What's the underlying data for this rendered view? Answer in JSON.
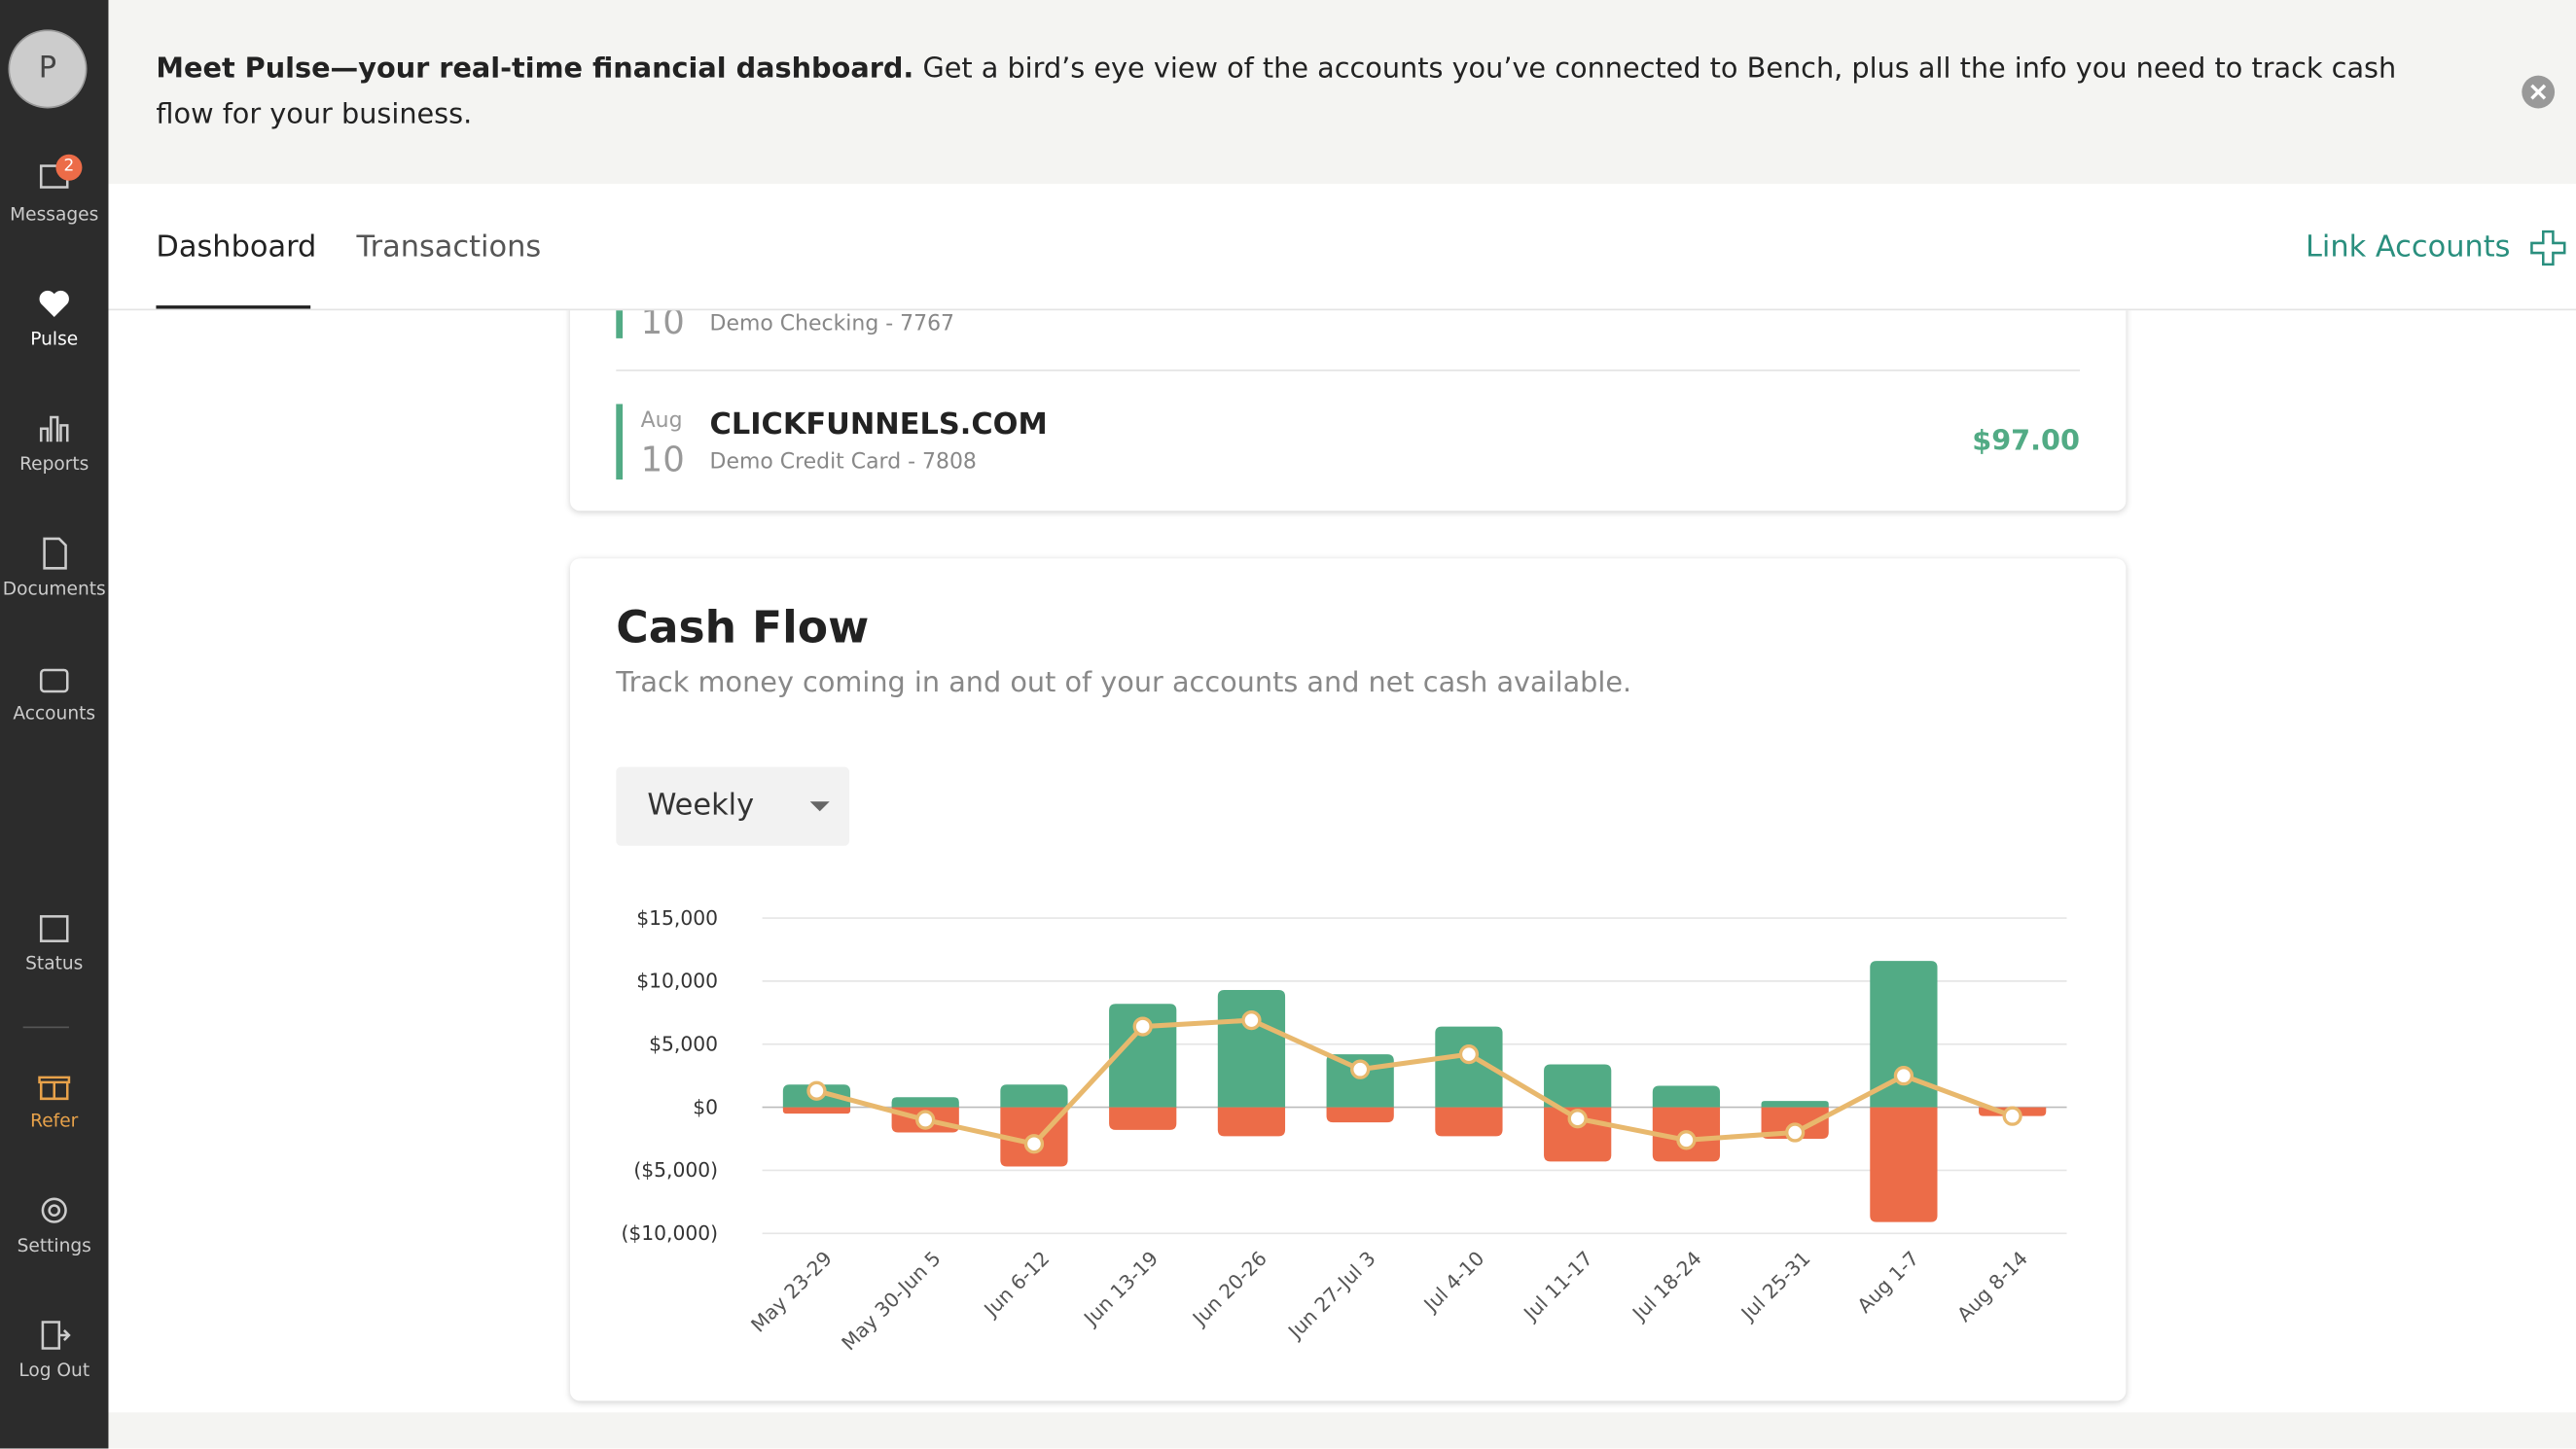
{
  "sidebar": {
    "avatar": "P",
    "items": [
      "Messages",
      "Pulse",
      "Reports",
      "Documents",
      "Accounts",
      "Status",
      "Refer",
      "Settings",
      "Log Out"
    ],
    "badge": "2"
  },
  "banner": {
    "bold": "Meet Pulse—your real-time financial dashboard.",
    "text": " Get a bird’s eye view of the accounts you’ve connected to Bench, plus all the info you need to track cash flow for your business."
  },
  "tabs": [
    "Dashboard",
    "Transactions"
  ],
  "link_accounts": "Link Accounts",
  "transactions": [
    {
      "day": "10",
      "account": "Demo Checking - 7767"
    },
    {
      "month": "Aug",
      "day": "10",
      "name": "CLICKFUNNELS.COM",
      "account": "Demo Credit Card - 7808",
      "amount": "$97.00"
    }
  ],
  "cash_flow": {
    "title": "Cash Flow",
    "subtitle": "Track money coming in and out of your accounts and net cash available.",
    "period": "Weekly"
  },
  "chart_data": {
    "type": "bar",
    "categories": [
      "May 23-29",
      "May 30-Jun 5",
      "Jun 6-12",
      "Jun 13-19",
      "Jun 20-26",
      "Jun 27-Jul 3",
      "Jul 4-10",
      "Jul 11-17",
      "Jul 18-24",
      "Jul 25-31",
      "Aug 1-7",
      "Aug 8-14"
    ],
    "series": [
      {
        "color": "#52ab85",
        "values": [
          1800,
          800,
          1800,
          8200,
          9300,
          4200,
          6400,
          3400,
          1700,
          500,
          11600,
          0
        ]
      },
      {
        "color": "#ec6c48",
        "values": [
          -500,
          -2000,
          -4700,
          -1800,
          -2300,
          -1200,
          -2300,
          -4300,
          -4300,
          -2500,
          -9100,
          -700
        ]
      },
      {
        "type": "line",
        "color": "#e8b86d",
        "values": [
          1300,
          -1000,
          -2900,
          6400,
          6900,
          3000,
          4200,
          -900,
          -2600,
          -2000,
          2500,
          -700
        ]
      }
    ],
    "ylim": [
      -10000,
      15000
    ],
    "yticks": [
      {
        "value": -10000,
        "label": "($10,000)"
      },
      {
        "value": -5000,
        "label": "($5,000)"
      },
      {
        "value": 0,
        "label": "$0"
      },
      {
        "value": 5000,
        "label": "$5,000"
      },
      {
        "value": 10000,
        "label": "$10,000"
      },
      {
        "value": 15000,
        "label": "$15,000"
      }
    ],
    "grid": true
  }
}
